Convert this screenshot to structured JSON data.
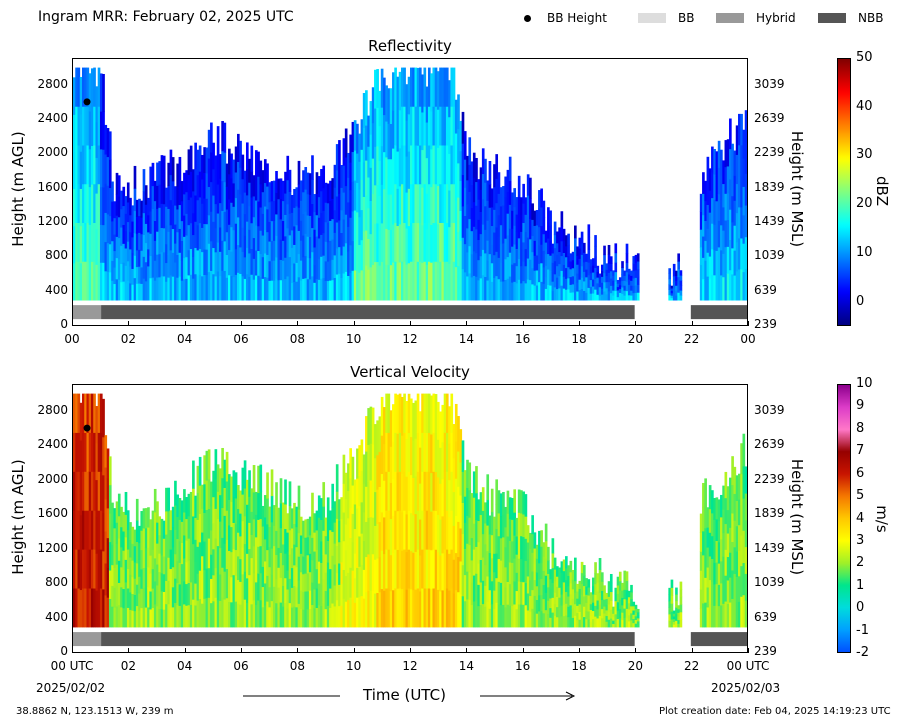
{
  "header": {
    "title": "Ingram MRR:  February 02, 2025 UTC",
    "legend": [
      {
        "label": "BB Height",
        "kind": "dot",
        "color": "#000000"
      },
      {
        "label": "BB",
        "kind": "swatch",
        "color": "#dddddd"
      },
      {
        "label": "Hybrid",
        "kind": "swatch",
        "color": "#999999"
      },
      {
        "label": "NBB",
        "kind": "swatch",
        "color": "#555555"
      }
    ]
  },
  "footer": {
    "location": "38.8862 N, 123.1513 W, 239 m",
    "creation": "Plot creation date: Feb 04, 2025 14:19:23 UTC",
    "time_label": "Time (UTC)",
    "date_start": "2025/02/02",
    "date_end": "2025/02/03"
  },
  "chart_data": [
    {
      "type": "heatmap",
      "title": "Reflectivity",
      "ylabel": "Height (m AGL)",
      "ylabel_right": "Height (m MSL)",
      "colorbar_label": "dBZ",
      "colorbar_ticks": [
        "50",
        "40",
        "30",
        "20",
        "10",
        "0"
      ],
      "colorbar_range": [
        -5,
        50
      ],
      "yticks": [
        "2800",
        "2400",
        "2000",
        "1600",
        "1200",
        "800",
        "400",
        "0"
      ],
      "yticks_right": [
        "3039",
        "2639",
        "2239",
        "1839",
        "1439",
        "1039",
        "639",
        "239"
      ],
      "xticks": [
        "00",
        "02",
        "04",
        "06",
        "08",
        "10",
        "12",
        "14",
        "16",
        "18",
        "20",
        "22",
        "00"
      ],
      "xlim_hours": [
        0,
        24
      ],
      "ylim_m": [
        0,
        3100
      ],
      "bb_height": {
        "time_h": 0.5,
        "height_m": 2600
      },
      "bright_band_class": [
        {
          "start_h": 0,
          "end_h": 1,
          "class": "Hybrid"
        },
        {
          "start_h": 1,
          "end_h": 20,
          "class": "NBB"
        },
        {
          "start_h": 22,
          "end_h": 24,
          "class": "NBB"
        }
      ],
      "echo_top_m": [
        {
          "h": 0,
          "top": 3000
        },
        {
          "h": 1,
          "top": 3000
        },
        {
          "h": 1.5,
          "top": 1600
        },
        {
          "h": 3,
          "top": 1700
        },
        {
          "h": 4,
          "top": 1900
        },
        {
          "h": 5,
          "top": 2200
        },
        {
          "h": 6,
          "top": 2000
        },
        {
          "h": 7,
          "top": 1900
        },
        {
          "h": 8,
          "top": 1700
        },
        {
          "h": 9,
          "top": 1800
        },
        {
          "h": 10,
          "top": 2200
        },
        {
          "h": 11,
          "top": 3000
        },
        {
          "h": 13.5,
          "top": 3000
        },
        {
          "h": 14,
          "top": 2000
        },
        {
          "h": 15,
          "top": 1800
        },
        {
          "h": 16,
          "top": 1700
        },
        {
          "h": 17,
          "top": 1200
        },
        {
          "h": 18,
          "top": 1000
        },
        {
          "h": 19,
          "top": 800
        },
        {
          "h": 20,
          "top": 700
        },
        {
          "h": 21,
          "top": 500
        },
        {
          "h": 22.5,
          "top": 1800
        },
        {
          "h": 24,
          "top": 2400
        }
      ]
    },
    {
      "type": "heatmap",
      "title": "Vertical Velocity",
      "ylabel": "Height (m AGL)",
      "ylabel_right": "Height (m MSL)",
      "colorbar_label": "m/s",
      "colorbar_ticks": [
        "10",
        "9",
        "8",
        "7",
        "6",
        "5",
        "4",
        "3",
        "2",
        "1",
        "0",
        "-1",
        "-2"
      ],
      "colorbar_range": [
        -2,
        10
      ],
      "yticks": [
        "2800",
        "2400",
        "2000",
        "1600",
        "1200",
        "800",
        "400",
        "0"
      ],
      "yticks_right": [
        "3039",
        "2639",
        "2239",
        "1839",
        "1439",
        "1039",
        "639",
        "239"
      ],
      "xticks": [
        "00 UTC",
        "02",
        "04",
        "06",
        "08",
        "10",
        "12",
        "14",
        "16",
        "18",
        "20",
        "22",
        "00 UTC"
      ],
      "xlim_hours": [
        0,
        24
      ],
      "ylim_m": [
        0,
        3100
      ],
      "bb_height": {
        "time_h": 0.5,
        "height_m": 2600
      },
      "bright_band_class": [
        {
          "start_h": 0,
          "end_h": 1,
          "class": "Hybrid"
        },
        {
          "start_h": 1,
          "end_h": 20,
          "class": "NBB"
        },
        {
          "start_h": 22,
          "end_h": 24,
          "class": "NBB"
        }
      ]
    }
  ]
}
